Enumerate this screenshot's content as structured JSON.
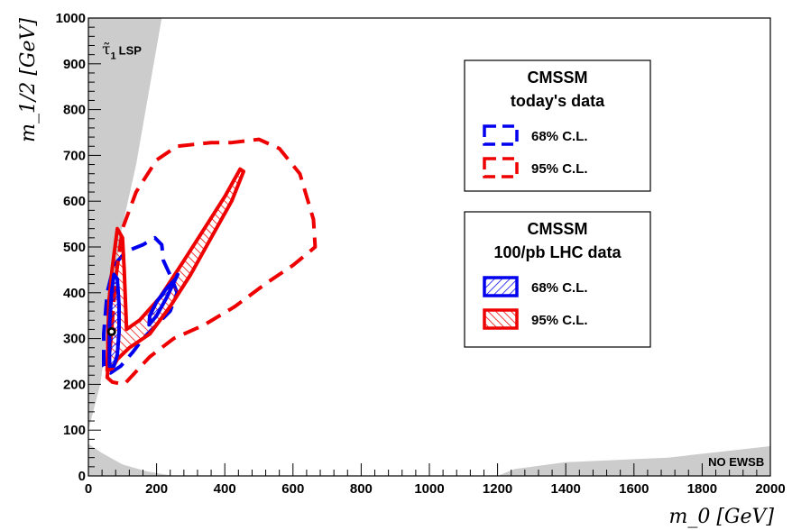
{
  "chart_data": {
    "type": "contour",
    "title": "",
    "xlabel": "m_0 [GeV]",
    "ylabel": "m_1/2 [GeV]",
    "xlim": [
      0,
      2000
    ],
    "ylim": [
      0,
      1000
    ],
    "x_ticks": [
      0,
      200,
      400,
      600,
      800,
      1000,
      1200,
      1400,
      1600,
      1800,
      2000
    ],
    "y_ticks": [
      0,
      100,
      200,
      300,
      400,
      500,
      600,
      700,
      800,
      900,
      1000
    ],
    "grid": false,
    "colors": {
      "blue": "#0000ee",
      "red": "#ee0000",
      "excluded": "#cccccc"
    },
    "excluded_regions": [
      {
        "label": "τ̃1 LSP",
        "label_main": "τ̃",
        "label_sub": "1",
        "label_suffix": "LSP",
        "points": [
          [
            0,
            1000
          ],
          [
            215,
            1000
          ],
          [
            140,
            680
          ],
          [
            95,
            530
          ],
          [
            55,
            310
          ],
          [
            35,
            200
          ],
          [
            0,
            100
          ]
        ]
      },
      {
        "label": "",
        "points": [
          [
            0,
            70
          ],
          [
            40,
            50
          ],
          [
            100,
            25
          ],
          [
            170,
            10
          ],
          [
            250,
            0
          ],
          [
            0,
            0
          ]
        ]
      },
      {
        "label": "NO EWSB",
        "points": [
          [
            1200,
            0
          ],
          [
            1250,
            15
          ],
          [
            1400,
            30
          ],
          [
            1700,
            40
          ],
          [
            2000,
            65
          ],
          [
            2000,
            0
          ]
        ]
      }
    ],
    "contours": [
      {
        "legend_group": 0,
        "entry": 0,
        "color": "blue",
        "style": "dashed",
        "points": [
          [
            45,
            240
          ],
          [
            45,
            310
          ],
          [
            55,
            400
          ],
          [
            75,
            460
          ],
          [
            110,
            490
          ],
          [
            160,
            505
          ],
          [
            195,
            520
          ],
          [
            215,
            505
          ],
          [
            220,
            470
          ],
          [
            245,
            430
          ],
          [
            260,
            400
          ],
          [
            240,
            360
          ],
          [
            200,
            330
          ],
          [
            160,
            300
          ],
          [
            130,
            270
          ],
          [
            95,
            240
          ],
          [
            65,
            225
          ],
          [
            45,
            240
          ]
        ]
      },
      {
        "legend_group": 0,
        "entry": 1,
        "color": "red",
        "style": "dashed",
        "points": [
          [
            55,
            215
          ],
          [
            65,
            290
          ],
          [
            80,
            430
          ],
          [
            100,
            540
          ],
          [
            140,
            620
          ],
          [
            200,
            690
          ],
          [
            260,
            720
          ],
          [
            360,
            728
          ],
          [
            420,
            728
          ],
          [
            500,
            735
          ],
          [
            560,
            715
          ],
          [
            620,
            660
          ],
          [
            660,
            560
          ],
          [
            665,
            500
          ],
          [
            600,
            460
          ],
          [
            520,
            420
          ],
          [
            430,
            370
          ],
          [
            340,
            330
          ],
          [
            250,
            300
          ],
          [
            180,
            260
          ],
          [
            130,
            220
          ],
          [
            105,
            200
          ],
          [
            70,
            205
          ],
          [
            55,
            215
          ]
        ]
      },
      {
        "legend_group": 1,
        "entry": 0,
        "color": "blue",
        "style": "hatched",
        "points": [
          [
            62,
            240
          ],
          [
            75,
            240
          ],
          [
            85,
            265
          ],
          [
            90,
            315
          ],
          [
            90,
            370
          ],
          [
            85,
            430
          ],
          [
            75,
            440
          ],
          [
            68,
            400
          ],
          [
            62,
            330
          ],
          [
            62,
            240
          ]
        ]
      },
      {
        "legend_group": 1,
        "entry": 0,
        "color": "blue",
        "style": "hatched",
        "points": [
          [
            178,
            330
          ],
          [
            200,
            350
          ],
          [
            230,
            390
          ],
          [
            262,
            440
          ],
          [
            255,
            430
          ],
          [
            230,
            410
          ],
          [
            200,
            380
          ],
          [
            180,
            350
          ],
          [
            178,
            330
          ]
        ]
      },
      {
        "legend_group": 1,
        "entry": 1,
        "color": "red",
        "style": "hatched",
        "points": [
          [
            55,
            230
          ],
          [
            60,
            380
          ],
          [
            70,
            455
          ],
          [
            85,
            540
          ],
          [
            100,
            520
          ],
          [
            105,
            450
          ],
          [
            112,
            320
          ],
          [
            150,
            340
          ],
          [
            210,
            390
          ],
          [
            280,
            470
          ],
          [
            340,
            540
          ],
          [
            400,
            610
          ],
          [
            445,
            670
          ],
          [
            455,
            665
          ],
          [
            420,
            600
          ],
          [
            360,
            520
          ],
          [
            300,
            440
          ],
          [
            240,
            370
          ],
          [
            180,
            310
          ],
          [
            120,
            280
          ],
          [
            85,
            255
          ],
          [
            70,
            235
          ],
          [
            55,
            230
          ]
        ]
      }
    ],
    "best_fit_point": [
      68,
      315
    ],
    "legends": [
      {
        "title_lines": [
          "CMSSM",
          "today's data"
        ],
        "entries": [
          {
            "label": "68% C.L.",
            "color": "blue",
            "style": "dashed"
          },
          {
            "label": "95% C.L.",
            "color": "red",
            "style": "dashed"
          }
        ]
      },
      {
        "title_lines": [
          "CMSSM",
          "100/pb LHC data"
        ],
        "entries": [
          {
            "label": "68% C.L.",
            "color": "blue",
            "style": "hatched"
          },
          {
            "label": "95% C.L.",
            "color": "red",
            "style": "hatched"
          }
        ]
      }
    ]
  }
}
